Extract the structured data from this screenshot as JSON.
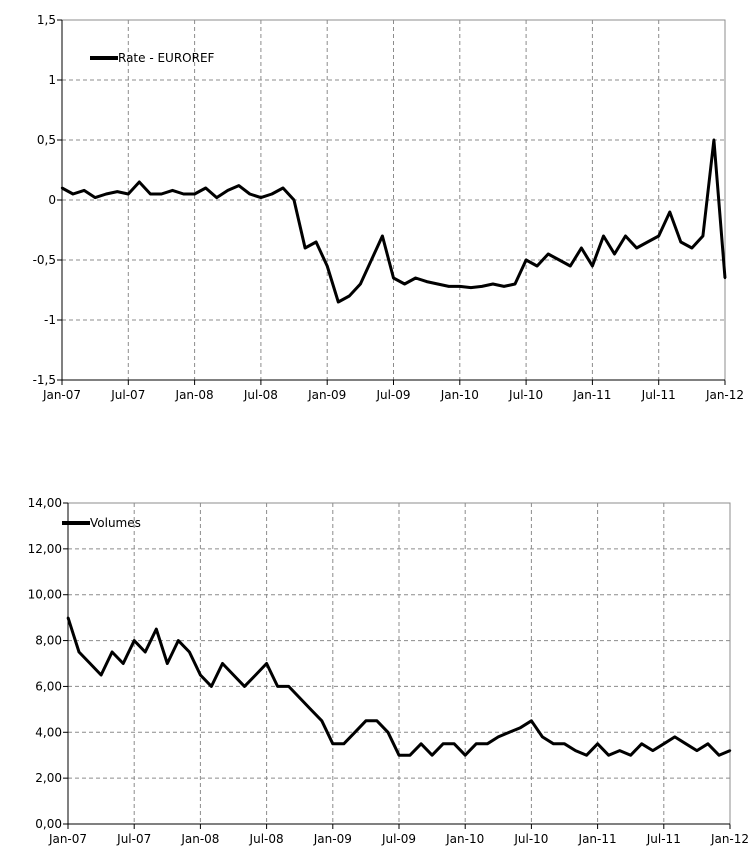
{
  "chart_data": [
    {
      "type": "line",
      "legend": "Rate - EUROREF",
      "legend_position": "top-left",
      "grid": true,
      "ylim": [
        -1.5,
        1.5
      ],
      "y_ticks": [
        "1,5",
        "1",
        "0,5",
        "0",
        "-0,5",
        "-1",
        "-1,5"
      ],
      "y_tick_values": [
        1.5,
        1,
        0.5,
        0,
        -0.5,
        -1,
        -1.5
      ],
      "x_ticks": [
        "Jan-07",
        "Jul-07",
        "Jan-08",
        "Jul-08",
        "Jan-09",
        "Jul-09",
        "Jan-10",
        "Jul-10",
        "Jan-11",
        "Jul-11",
        "Jan-12"
      ],
      "x": [
        "2007-01",
        "2007-02",
        "2007-03",
        "2007-04",
        "2007-05",
        "2007-06",
        "2007-07",
        "2007-08",
        "2007-09",
        "2007-10",
        "2007-11",
        "2007-12",
        "2008-01",
        "2008-02",
        "2008-03",
        "2008-04",
        "2008-05",
        "2008-06",
        "2008-07",
        "2008-08",
        "2008-09",
        "2008-10",
        "2008-11",
        "2008-12",
        "2009-01",
        "2009-02",
        "2009-03",
        "2009-04",
        "2009-05",
        "2009-06",
        "2009-07",
        "2009-08",
        "2009-09",
        "2009-10",
        "2009-11",
        "2009-12",
        "2010-01",
        "2010-02",
        "2010-03",
        "2010-04",
        "2010-05",
        "2010-06",
        "2010-07",
        "2010-08",
        "2010-09",
        "2010-10",
        "2010-11",
        "2010-12",
        "2011-01",
        "2011-02",
        "2011-03",
        "2011-04",
        "2011-05",
        "2011-06",
        "2011-07",
        "2011-08",
        "2011-09",
        "2011-10",
        "2011-11",
        "2011-12",
        "2012-01"
      ],
      "values": [
        0.1,
        0.05,
        0.08,
        0.02,
        0.05,
        0.07,
        0.05,
        0.15,
        0.05,
        0.05,
        0.08,
        0.05,
        0.05,
        0.1,
        0.02,
        0.08,
        0.12,
        0.05,
        0.02,
        0.05,
        0.1,
        0.0,
        -0.4,
        -0.35,
        -0.55,
        -0.85,
        -0.8,
        -0.7,
        -0.5,
        -0.3,
        -0.65,
        -0.7,
        -0.65,
        -0.68,
        -0.7,
        -0.72,
        -0.72,
        -0.73,
        -0.72,
        -0.7,
        -0.72,
        -0.7,
        -0.5,
        -0.55,
        -0.45,
        -0.5,
        -0.55,
        -0.4,
        -0.55,
        -0.3,
        -0.45,
        -0.3,
        -0.4,
        -0.35,
        -0.3,
        -0.1,
        -0.35,
        -0.4,
        -0.3,
        0.5,
        -0.65
      ]
    },
    {
      "type": "line",
      "legend": "Volumes",
      "legend_position": "top-left",
      "grid": true,
      "ylim": [
        0,
        14
      ],
      "y_ticks": [
        "14,00",
        "12,00",
        "10,00",
        "8,00",
        "6,00",
        "4,00",
        "2,00",
        "0,00"
      ],
      "y_tick_values": [
        14,
        12,
        10,
        8,
        6,
        4,
        2,
        0
      ],
      "x_ticks": [
        "Jan-07",
        "Jul-07",
        "Jan-08",
        "Jul-08",
        "Jan-09",
        "Jul-09",
        "Jan-10",
        "Jul-10",
        "Jan-11",
        "Jul-11",
        "Jan-12"
      ],
      "x": [
        "2007-01",
        "2007-02",
        "2007-03",
        "2007-04",
        "2007-05",
        "2007-06",
        "2007-07",
        "2007-08",
        "2007-09",
        "2007-10",
        "2007-11",
        "2007-12",
        "2008-01",
        "2008-02",
        "2008-03",
        "2008-04",
        "2008-05",
        "2008-06",
        "2008-07",
        "2008-08",
        "2008-09",
        "2008-10",
        "2008-11",
        "2008-12",
        "2009-01",
        "2009-02",
        "2009-03",
        "2009-04",
        "2009-05",
        "2009-06",
        "2009-07",
        "2009-08",
        "2009-09",
        "2009-10",
        "2009-11",
        "2009-12",
        "2010-01",
        "2010-02",
        "2010-03",
        "2010-04",
        "2010-05",
        "2010-06",
        "2010-07",
        "2010-08",
        "2010-09",
        "2010-10",
        "2010-11",
        "2010-12",
        "2011-01",
        "2011-02",
        "2011-03",
        "2011-04",
        "2011-05",
        "2011-06",
        "2011-07",
        "2011-08",
        "2011-09",
        "2011-10",
        "2011-11",
        "2011-12",
        "2012-01"
      ],
      "values": [
        9.0,
        7.5,
        7.0,
        6.5,
        7.5,
        7.0,
        8.0,
        7.5,
        8.5,
        7.0,
        8.0,
        7.5,
        6.5,
        6.0,
        7.0,
        6.5,
        6.0,
        6.5,
        7.0,
        6.0,
        6.0,
        5.5,
        5.0,
        4.5,
        3.5,
        3.5,
        4.0,
        4.5,
        4.5,
        4.0,
        3.0,
        3.0,
        3.5,
        3.0,
        3.5,
        3.5,
        3.0,
        3.5,
        3.5,
        3.8,
        4.0,
        4.2,
        4.5,
        3.8,
        3.5,
        3.5,
        3.2,
        3.0,
        3.5,
        3.0,
        3.2,
        3.0,
        3.5,
        3.2,
        3.5,
        3.8,
        3.5,
        3.2,
        3.5,
        3.0,
        3.2
      ]
    }
  ]
}
